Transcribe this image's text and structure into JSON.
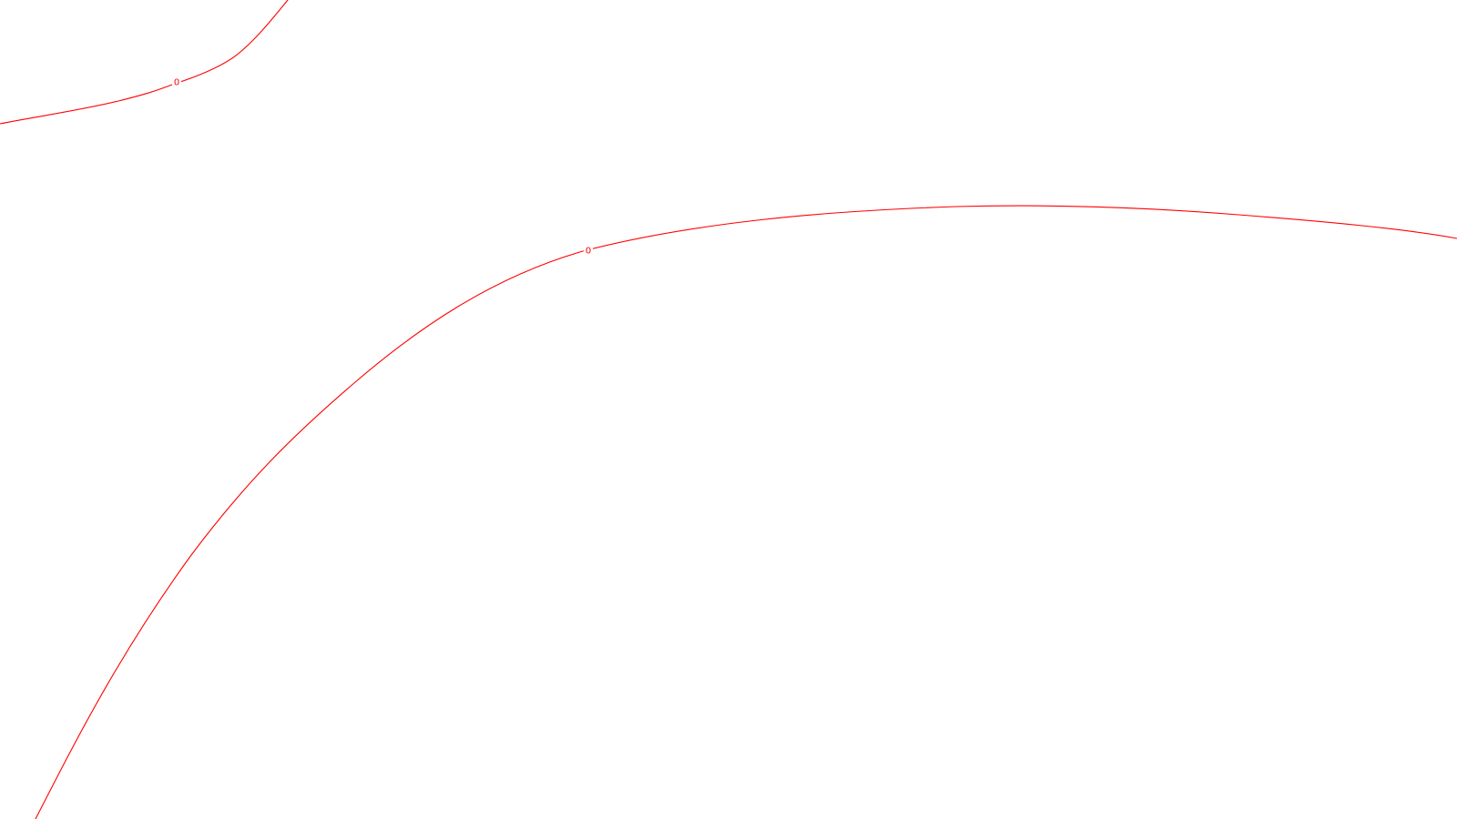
{
  "colors": {
    "background": "#ffffff",
    "contour": "#ff0000"
  },
  "contours": [
    {
      "level": "0",
      "label": "0"
    },
    {
      "level": "0",
      "label": "0"
    }
  ]
}
